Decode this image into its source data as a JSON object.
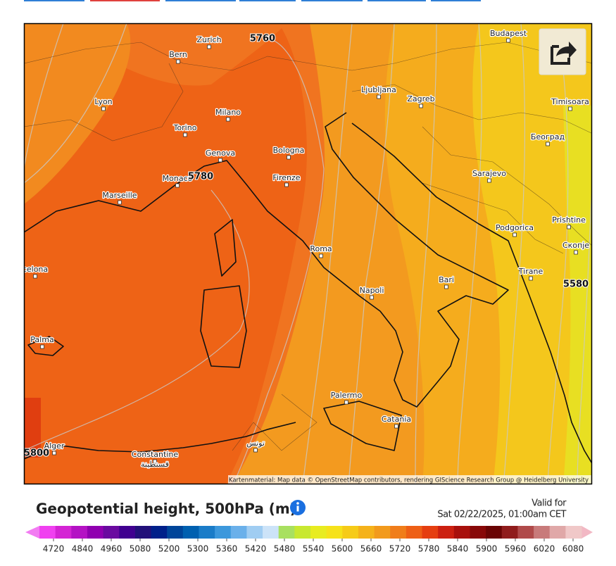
{
  "header": {
    "title": "Geopotential height, 500hPa (m)",
    "valid_label": "Valid for",
    "valid_time": "Sat 02/22/2025, 01:00am CET"
  },
  "map": {
    "cities": [
      {
        "name": "Zurich"
      },
      {
        "name": "Bern"
      },
      {
        "name": "Budapest"
      },
      {
        "name": "Lyon"
      },
      {
        "name": "Milano"
      },
      {
        "name": "Ljubljana"
      },
      {
        "name": "Zagreb"
      },
      {
        "name": "Timisoara"
      },
      {
        "name": "Torino"
      },
      {
        "name": "Genova"
      },
      {
        "name": "Bologna"
      },
      {
        "name": "Београд"
      },
      {
        "name": "Monaco"
      },
      {
        "name": "Firenze"
      },
      {
        "name": "Sarajevo"
      },
      {
        "name": "Marseille"
      },
      {
        "name": "Podgorica"
      },
      {
        "name": "Prishtine"
      },
      {
        "name": "Roma"
      },
      {
        "name": "Скопје"
      },
      {
        "name": "celona"
      },
      {
        "name": "Tirane"
      },
      {
        "name": "Bari"
      },
      {
        "name": "Napoli"
      },
      {
        "name": "Palma"
      },
      {
        "name": "Palermo"
      },
      {
        "name": "Catania"
      },
      {
        "name": "Alger"
      },
      {
        "name": "Constantine",
        "native": "قسنطينة"
      },
      {
        "name": "تونس"
      }
    ],
    "contour_labels": [
      5760,
      5780,
      5580,
      5800
    ],
    "attribution": "Kartenmaterial: Map data © OpenStreetMap contributors, rendering GIScience Research Group @ Heidelberg University"
  },
  "colorbar": {
    "ticks": [
      4720,
      4840,
      4960,
      5080,
      5200,
      5300,
      5360,
      5420,
      5480,
      5540,
      5600,
      5660,
      5720,
      5780,
      5840,
      5900,
      5960,
      6020,
      6080
    ],
    "under_color": "#f27cf2",
    "over_color": "#f2b8c4",
    "colors": [
      "#f040f0",
      "#d424d4",
      "#b412c4",
      "#9000b0",
      "#6a0aa0",
      "#400090",
      "#22107a",
      "#00208a",
      "#00459a",
      "#0060b0",
      "#1a7cc8",
      "#3c98dc",
      "#6ab0ea",
      "#a0cdf2",
      "#cce3f8",
      "#a8e060",
      "#c8e830",
      "#e8ec20",
      "#f6e21a",
      "#f6cb18",
      "#f5b21a",
      "#f29a1c",
      "#f07d1a",
      "#ee5f16",
      "#e53e10",
      "#cc2010",
      "#a8100c",
      "#880808",
      "#6a0404",
      "#901c1c",
      "#b04a4a",
      "#c87a7a",
      "#e0a8a8",
      "#f0c8c8"
    ]
  }
}
